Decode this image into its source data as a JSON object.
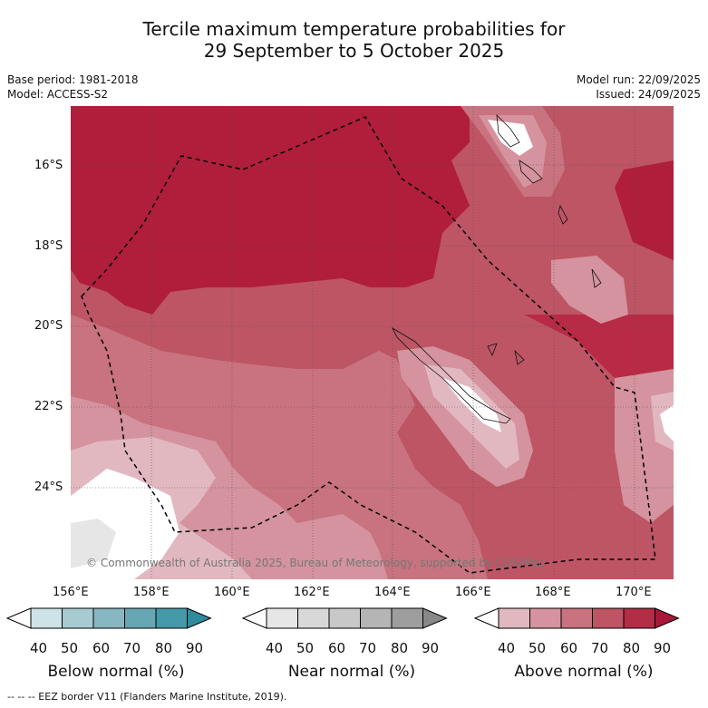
{
  "title_line1": "Tercile maximum temperature probabilities for",
  "title_line2": "29 September to 5 October 2025",
  "base_period": "Base period: 1981-2018",
  "model": "Model: ACCESS-S2",
  "model_run": "Model run: 22/09/2025",
  "issued": "Issued: 24/09/2025",
  "lat_labels": [
    "16°S",
    "18°S",
    "20°S",
    "22°S",
    "24°S"
  ],
  "lon_labels": [
    "156°E",
    "158°E",
    "160°E",
    "162°E",
    "164°E",
    "166°E",
    "168°E",
    "170°E"
  ],
  "copyright": "© Commonwealth of Australia 2025, Bureau of Meteorology, supported by COSPPac",
  "colorbars": [
    {
      "title": "Below normal (%)",
      "ticks": [
        "40",
        "50",
        "60",
        "70",
        "80",
        "90"
      ],
      "colors": [
        "#ffffff",
        "#cde3e8",
        "#a8cbd2",
        "#87b7c2",
        "#67a6b3",
        "#4599a9",
        "#2f8a9e"
      ]
    },
    {
      "title": "Near normal (%)",
      "ticks": [
        "40",
        "50",
        "60",
        "70",
        "80",
        "90"
      ],
      "colors": [
        "#ffffff",
        "#e6e6e6",
        "#d8d8d8",
        "#c8c8c8",
        "#b5b5b5",
        "#9e9e9e",
        "#888888"
      ]
    },
    {
      "title": "Above normal (%)",
      "ticks": [
        "40",
        "50",
        "60",
        "70",
        "80",
        "90"
      ],
      "colors": [
        "#ffffff",
        "#e2b8c0",
        "#d4939e",
        "#c8737f",
        "#bd5565",
        "#b22d45",
        "#a8183a"
      ]
    }
  ],
  "footer": "--  --  -- EEZ border V11 (Flanders Marine Institute, 2019)."
}
